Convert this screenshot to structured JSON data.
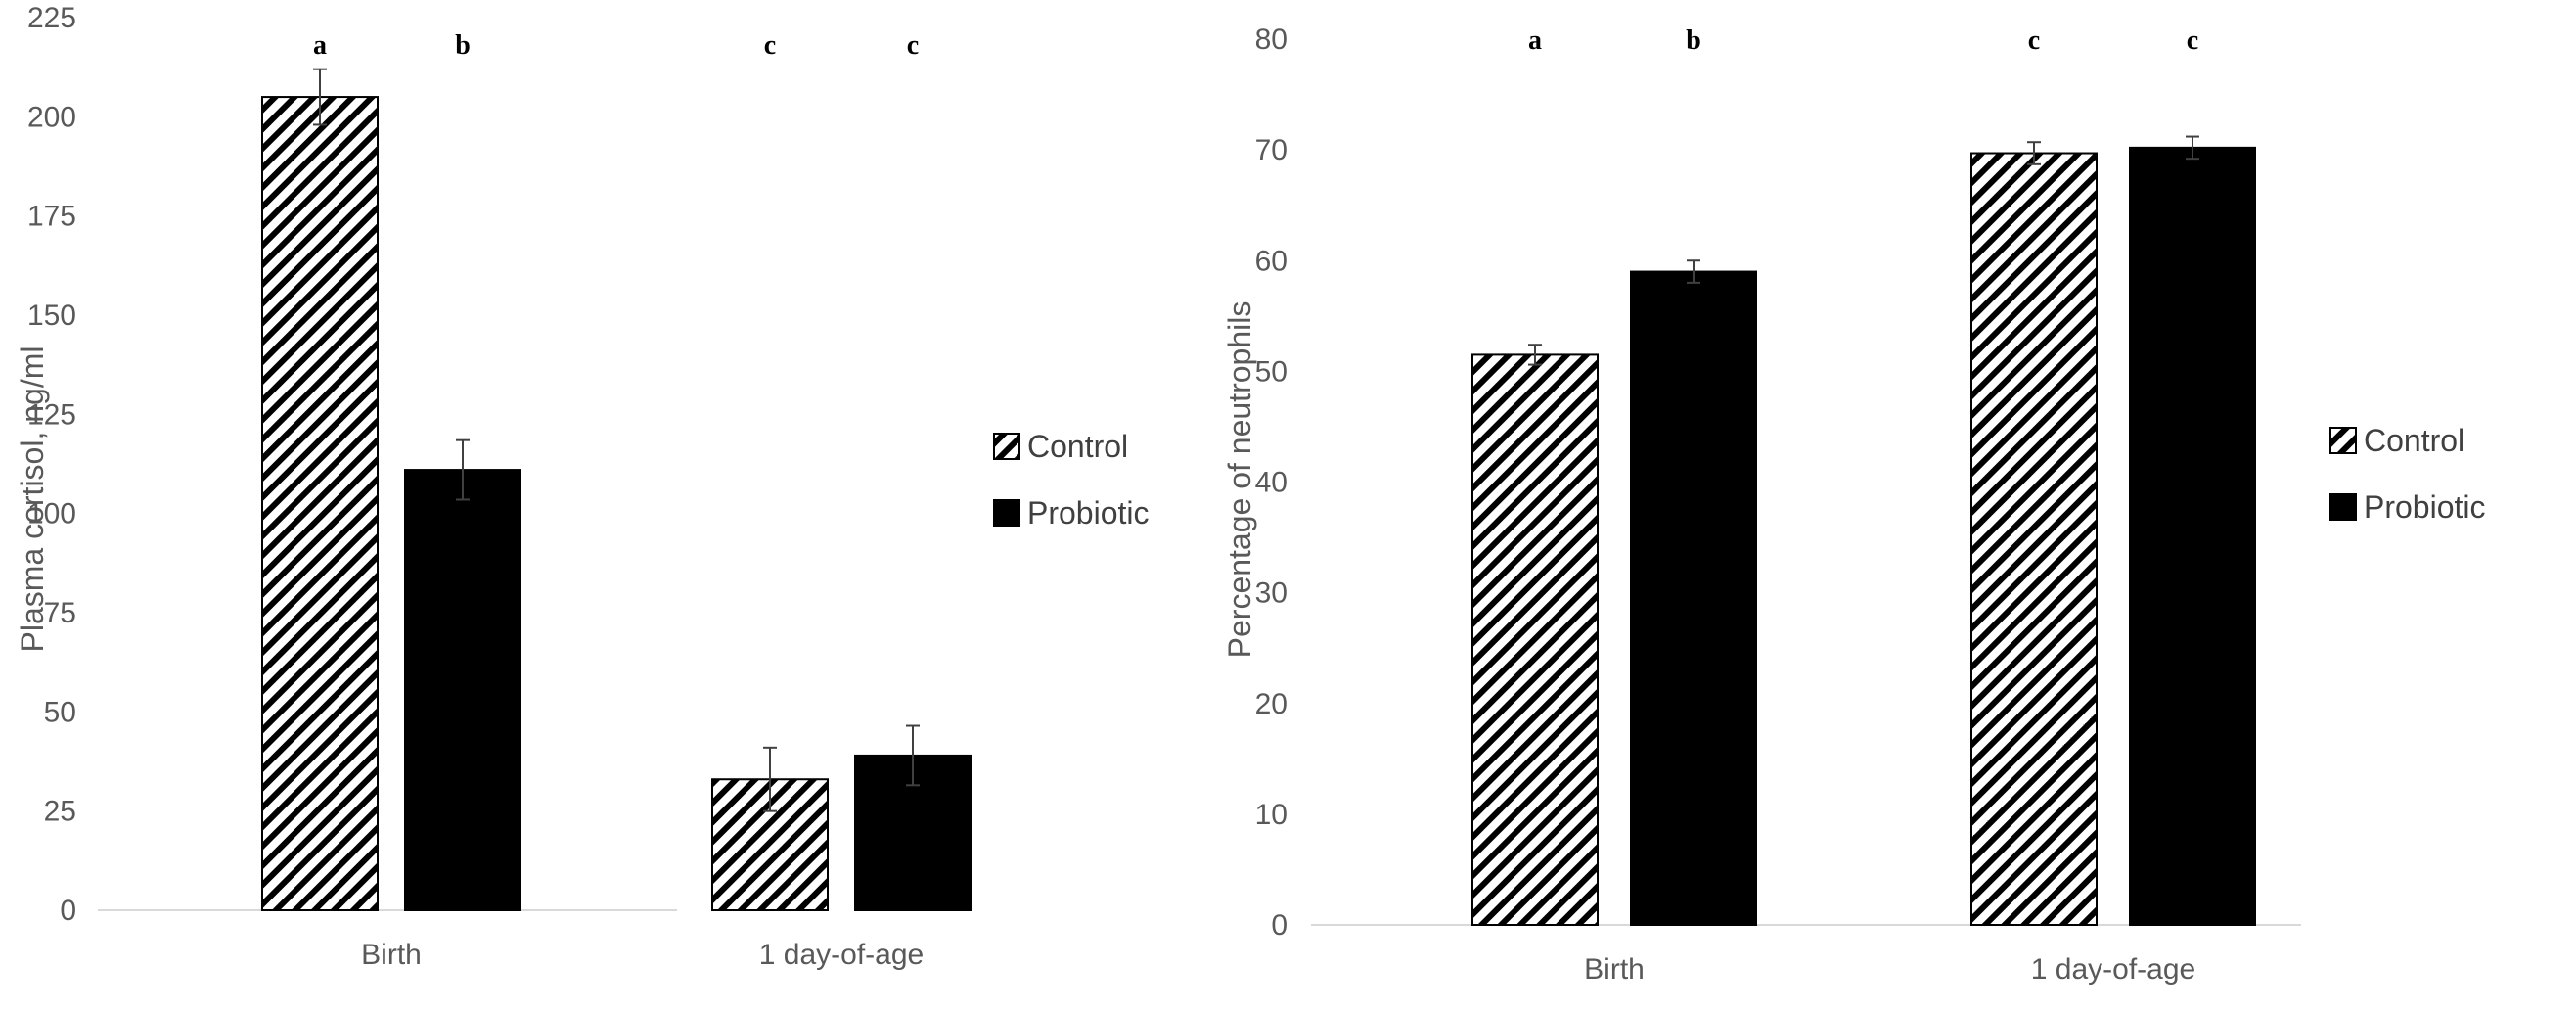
{
  "chart_data": [
    {
      "type": "bar",
      "title": "",
      "xlabel": "",
      "ylabel": "Plasma cortisol, ng/ml",
      "ylim": [
        0,
        225
      ],
      "yticks": [
        0,
        25,
        50,
        75,
        100,
        125,
        150,
        175,
        200,
        225
      ],
      "categories": [
        "Birth",
        "1 day-of-age"
      ],
      "series": [
        {
          "name": "Control",
          "pattern": "hatched",
          "values": [
            205,
            33
          ],
          "errors": [
            7,
            8
          ]
        },
        {
          "name": "Probiotic",
          "pattern": "solid",
          "values": [
            111,
            39
          ],
          "errors": [
            7.5,
            7.5
          ]
        }
      ],
      "significance": [
        [
          "a",
          "b"
        ],
        [
          "c",
          "c"
        ]
      ],
      "legend": "right"
    },
    {
      "type": "bar",
      "title": "",
      "xlabel": "",
      "ylabel": "Percentage of neutrophils",
      "ylim": [
        0,
        80
      ],
      "yticks": [
        0,
        10,
        20,
        30,
        40,
        50,
        60,
        70,
        80
      ],
      "categories": [
        "Birth",
        "1 day-of-age"
      ],
      "series": [
        {
          "name": "Control",
          "pattern": "hatched",
          "values": [
            51.5,
            69.7
          ],
          "errors": [
            0.9,
            1.0
          ]
        },
        {
          "name": "Probiotic",
          "pattern": "solid",
          "values": [
            59,
            70.2
          ],
          "errors": [
            1.0,
            1.0
          ]
        }
      ],
      "significance": [
        [
          "a",
          "b"
        ],
        [
          "c",
          "c"
        ]
      ],
      "legend": "right"
    }
  ]
}
